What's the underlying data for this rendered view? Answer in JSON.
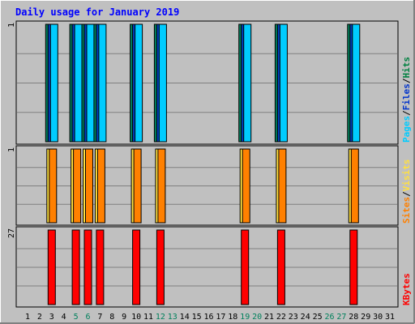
{
  "chart_data": {
    "type": "bar",
    "title": "Daily usage for January 2019",
    "days": [
      1,
      2,
      3,
      4,
      5,
      6,
      7,
      8,
      9,
      10,
      11,
      12,
      13,
      14,
      15,
      16,
      17,
      18,
      19,
      20,
      21,
      22,
      23,
      24,
      25,
      26,
      27,
      28,
      29,
      30,
      31
    ],
    "weekend_days": [
      5,
      6,
      12,
      13,
      19,
      20,
      26,
      27
    ],
    "panels": [
      {
        "id": "pages-files-hits",
        "max_label": "1",
        "ylim": [
          0,
          1
        ],
        "legend": [
          {
            "text": "Pages",
            "color": "#00CCFF"
          },
          {
            "text": "/",
            "color": "#000000"
          },
          {
            "text": "Files",
            "color": "#0033CC"
          },
          {
            "text": "/",
            "color": "#000000"
          },
          {
            "text": "Hits",
            "color": "#008040"
          }
        ],
        "series": [
          {
            "name": "Hits",
            "color": "#00805C",
            "values": [
              0,
              0,
              1,
              0,
              1,
              1,
              1,
              0,
              0,
              1,
              0,
              1,
              0,
              0,
              0,
              0,
              0,
              0,
              1,
              0,
              0,
              1,
              0,
              0,
              0,
              0,
              0,
              1,
              0,
              0,
              0
            ]
          },
          {
            "name": "Files",
            "color": "#0040C0",
            "values": [
              0,
              0,
              1,
              0,
              1,
              1,
              1,
              0,
              0,
              1,
              0,
              1,
              0,
              0,
              0,
              0,
              0,
              0,
              1,
              0,
              0,
              1,
              0,
              0,
              0,
              0,
              0,
              1,
              0,
              0,
              0
            ]
          },
          {
            "name": "Pages",
            "color": "#00CCFF",
            "values": [
              0,
              0,
              1,
              0,
              1,
              1,
              1,
              0,
              0,
              1,
              0,
              1,
              0,
              0,
              0,
              0,
              0,
              0,
              1,
              0,
              0,
              1,
              0,
              0,
              0,
              0,
              0,
              1,
              0,
              0,
              0
            ]
          }
        ]
      },
      {
        "id": "sites-visits",
        "max_label": "1",
        "ylim": [
          0,
          1
        ],
        "legend": [
          {
            "text": "Sites",
            "color": "#FF8000"
          },
          {
            "text": "/",
            "color": "#000000"
          },
          {
            "text": "Visits",
            "color": "#FFE040"
          }
        ],
        "series": [
          {
            "name": "Visits",
            "color": "#FFE040",
            "values": [
              0,
              0,
              1,
              0,
              1,
              1,
              1,
              0,
              0,
              1,
              0,
              1,
              0,
              0,
              0,
              0,
              0,
              0,
              1,
              0,
              0,
              1,
              0,
              0,
              0,
              0,
              0,
              1,
              0,
              0,
              0
            ]
          },
          {
            "name": "Sites",
            "color": "#FF8000",
            "values": [
              0,
              0,
              1,
              0,
              1,
              1,
              1,
              0,
              0,
              1,
              0,
              1,
              0,
              0,
              0,
              0,
              0,
              0,
              1,
              0,
              0,
              1,
              0,
              0,
              0,
              0,
              0,
              1,
              0,
              0,
              0
            ]
          }
        ]
      },
      {
        "id": "kbytes",
        "max_label": "27",
        "ylim": [
          0,
          27
        ],
        "legend": [
          {
            "text": "KBytes",
            "color": "#FF0000"
          }
        ],
        "series": [
          {
            "name": "KBytes",
            "color": "#FF0000",
            "values": [
              0,
              0,
              27,
              0,
              27,
              27,
              27,
              0,
              0,
              27,
              0,
              27,
              0,
              0,
              0,
              0,
              0,
              0,
              27,
              0,
              0,
              27,
              0,
              0,
              0,
              0,
              0,
              27,
              0,
              0,
              0
            ]
          }
        ]
      }
    ],
    "colors": {
      "background": "#C0C0C0",
      "title": "#0000FF",
      "weekday_label": "#000000",
      "weekend_label": "#00805C"
    }
  }
}
